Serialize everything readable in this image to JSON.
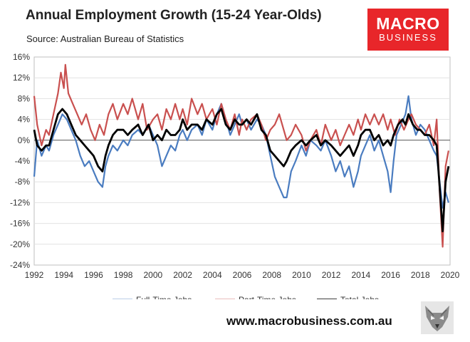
{
  "title": "Annual Employment Growth (15-24 Year-Olds)",
  "subtitle": "Source: Australian Bureau of Statistics",
  "logo": {
    "top": "MACRO",
    "bottom": "BUSINESS",
    "color": "#e8262a"
  },
  "website": "www.macrobusiness.com.au",
  "chart_data": {
    "type": "line",
    "ylim": [
      -24,
      16
    ],
    "xlim": [
      1992,
      2020
    ],
    "yticks": [
      -24,
      -20,
      -16,
      -12,
      -8,
      -4,
      0,
      4,
      8,
      12,
      16
    ],
    "ytick_labels": [
      "-24%",
      "-20%",
      "-16%",
      "-12%",
      "-8%",
      "-4%",
      "0%",
      "4%",
      "8%",
      "12%",
      "16%"
    ],
    "xticks": [
      1992,
      1994,
      1996,
      1998,
      2000,
      2002,
      2004,
      2006,
      2008,
      2010,
      2012,
      2014,
      2016,
      2018,
      2020
    ],
    "xtick_labels": [
      "1992",
      "1994",
      "1996",
      "1998",
      "2000",
      "2002",
      "2004",
      "2006",
      "2008",
      "2010",
      "2012",
      "2014",
      "2016",
      "2018",
      "2020"
    ],
    "grid": "horizontal",
    "legend_position": "bottom",
    "series": [
      {
        "name": "Full-Time Jobs",
        "color": "#4a7cc0",
        "width": 2.2,
        "points": [
          [
            1992.0,
            -7
          ],
          [
            1992.2,
            0
          ],
          [
            1992.5,
            -3
          ],
          [
            1992.8,
            -1
          ],
          [
            1993.0,
            -2
          ],
          [
            1993.3,
            1
          ],
          [
            1993.6,
            3
          ],
          [
            1993.9,
            5
          ],
          [
            1994.2,
            4
          ],
          [
            1994.5,
            2
          ],
          [
            1994.8,
            0
          ],
          [
            1995.1,
            -3
          ],
          [
            1995.4,
            -5
          ],
          [
            1995.7,
            -4
          ],
          [
            1996.0,
            -6
          ],
          [
            1996.3,
            -8
          ],
          [
            1996.6,
            -9
          ],
          [
            1996.8,
            -5
          ],
          [
            1997.0,
            -3
          ],
          [
            1997.3,
            -1
          ],
          [
            1997.6,
            -2
          ],
          [
            1998.0,
            0
          ],
          [
            1998.3,
            -1
          ],
          [
            1998.6,
            1
          ],
          [
            1999.0,
            2
          ],
          [
            1999.3,
            1
          ],
          [
            1999.7,
            3
          ],
          [
            2000.0,
            1
          ],
          [
            2000.3,
            -1
          ],
          [
            2000.6,
            -5
          ],
          [
            2000.9,
            -3
          ],
          [
            2001.2,
            -1
          ],
          [
            2001.5,
            -2
          ],
          [
            2001.8,
            1
          ],
          [
            2002.0,
            2
          ],
          [
            2002.3,
            0
          ],
          [
            2002.6,
            2
          ],
          [
            2003.0,
            3
          ],
          [
            2003.3,
            1
          ],
          [
            2003.6,
            4
          ],
          [
            2004.0,
            2
          ],
          [
            2004.3,
            5
          ],
          [
            2004.6,
            7
          ],
          [
            2004.9,
            4
          ],
          [
            2005.2,
            1
          ],
          [
            2005.5,
            3
          ],
          [
            2005.8,
            5
          ],
          [
            2006.0,
            3
          ],
          [
            2006.3,
            4
          ],
          [
            2006.6,
            2
          ],
          [
            2007.0,
            4
          ],
          [
            2007.3,
            3
          ],
          [
            2007.6,
            1
          ],
          [
            2007.9,
            -3
          ],
          [
            2008.2,
            -7
          ],
          [
            2008.5,
            -9
          ],
          [
            2008.8,
            -11
          ],
          [
            2009.0,
            -11
          ],
          [
            2009.3,
            -6
          ],
          [
            2009.6,
            -4
          ],
          [
            2010.0,
            -1
          ],
          [
            2010.3,
            -3
          ],
          [
            2010.6,
            0
          ],
          [
            2011.0,
            -1
          ],
          [
            2011.3,
            -2
          ],
          [
            2011.6,
            0
          ],
          [
            2012.0,
            -3
          ],
          [
            2012.3,
            -6
          ],
          [
            2012.6,
            -4
          ],
          [
            2012.9,
            -7
          ],
          [
            2013.2,
            -5
          ],
          [
            2013.5,
            -9
          ],
          [
            2013.8,
            -6
          ],
          [
            2014.0,
            -3
          ],
          [
            2014.3,
            -1
          ],
          [
            2014.6,
            1
          ],
          [
            2014.9,
            -2
          ],
          [
            2015.2,
            0
          ],
          [
            2015.5,
            -3
          ],
          [
            2015.8,
            -6
          ],
          [
            2016.0,
            -10
          ],
          [
            2016.2,
            -4
          ],
          [
            2016.4,
            1
          ],
          [
            2016.7,
            3
          ],
          [
            2017.0,
            5
          ],
          [
            2017.2,
            8.5
          ],
          [
            2017.4,
            4
          ],
          [
            2017.7,
            1
          ],
          [
            2018.0,
            3
          ],
          [
            2018.3,
            2
          ],
          [
            2018.6,
            0
          ],
          [
            2018.9,
            -2
          ],
          [
            2019.1,
            -3
          ],
          [
            2019.3,
            -8
          ],
          [
            2019.5,
            -13
          ],
          [
            2019.7,
            -10
          ],
          [
            2019.9,
            -12
          ]
        ]
      },
      {
        "name": "Part-Time Jobs",
        "color": "#c9504f",
        "width": 2.2,
        "points": [
          [
            1992.0,
            8.5
          ],
          [
            1992.2,
            3
          ],
          [
            1992.5,
            -1
          ],
          [
            1992.8,
            2
          ],
          [
            1993.0,
            1
          ],
          [
            1993.3,
            5
          ],
          [
            1993.6,
            9
          ],
          [
            1993.8,
            13
          ],
          [
            1994.0,
            10
          ],
          [
            1994.1,
            14.5
          ],
          [
            1994.3,
            9
          ],
          [
            1994.6,
            7
          ],
          [
            1994.9,
            5
          ],
          [
            1995.2,
            3
          ],
          [
            1995.5,
            5
          ],
          [
            1995.8,
            2
          ],
          [
            1996.1,
            0
          ],
          [
            1996.4,
            3
          ],
          [
            1996.7,
            1
          ],
          [
            1997.0,
            5
          ],
          [
            1997.3,
            7
          ],
          [
            1997.6,
            4
          ],
          [
            1998.0,
            7
          ],
          [
            1998.3,
            5
          ],
          [
            1998.6,
            8
          ],
          [
            1999.0,
            4
          ],
          [
            1999.3,
            7
          ],
          [
            1999.6,
            2
          ],
          [
            2000.0,
            4
          ],
          [
            2000.3,
            5
          ],
          [
            2000.6,
            2
          ],
          [
            2000.9,
            6
          ],
          [
            2001.2,
            4
          ],
          [
            2001.5,
            7
          ],
          [
            2001.8,
            4
          ],
          [
            2002.0,
            6
          ],
          [
            2002.3,
            3
          ],
          [
            2002.6,
            8
          ],
          [
            2003.0,
            5
          ],
          [
            2003.3,
            7
          ],
          [
            2003.6,
            4
          ],
          [
            2004.0,
            6
          ],
          [
            2004.3,
            3
          ],
          [
            2004.6,
            7
          ],
          [
            2004.9,
            4
          ],
          [
            2005.2,
            2
          ],
          [
            2005.5,
            5
          ],
          [
            2005.8,
            1
          ],
          [
            2006.0,
            4
          ],
          [
            2006.3,
            2
          ],
          [
            2006.6,
            4
          ],
          [
            2007.0,
            5
          ],
          [
            2007.3,
            3
          ],
          [
            2007.6,
            0
          ],
          [
            2007.9,
            2
          ],
          [
            2008.2,
            3
          ],
          [
            2008.5,
            5
          ],
          [
            2008.8,
            2
          ],
          [
            2009.0,
            0
          ],
          [
            2009.3,
            1
          ],
          [
            2009.6,
            3
          ],
          [
            2010.0,
            1
          ],
          [
            2010.3,
            -2
          ],
          [
            2010.6,
            0
          ],
          [
            2011.0,
            2
          ],
          [
            2011.3,
            -1
          ],
          [
            2011.6,
            3
          ],
          [
            2012.0,
            0
          ],
          [
            2012.3,
            2
          ],
          [
            2012.6,
            -1
          ],
          [
            2012.9,
            1
          ],
          [
            2013.2,
            3
          ],
          [
            2013.5,
            1
          ],
          [
            2013.8,
            4
          ],
          [
            2014.0,
            2
          ],
          [
            2014.3,
            5
          ],
          [
            2014.6,
            3
          ],
          [
            2014.9,
            5
          ],
          [
            2015.2,
            3
          ],
          [
            2015.5,
            5
          ],
          [
            2015.8,
            2
          ],
          [
            2016.0,
            4
          ],
          [
            2016.3,
            1
          ],
          [
            2016.6,
            4
          ],
          [
            2016.9,
            2
          ],
          [
            2017.2,
            4
          ],
          [
            2017.4,
            5
          ],
          [
            2017.7,
            3
          ],
          [
            2018.0,
            2
          ],
          [
            2018.3,
            1
          ],
          [
            2018.6,
            3
          ],
          [
            2018.9,
            -1
          ],
          [
            2019.1,
            4
          ],
          [
            2019.3,
            -10
          ],
          [
            2019.5,
            -20.5
          ],
          [
            2019.7,
            -5
          ],
          [
            2019.9,
            -2
          ]
        ]
      },
      {
        "name": "Total Jobs",
        "color": "#000000",
        "width": 2.8,
        "points": [
          [
            1992.0,
            2
          ],
          [
            1992.2,
            -1
          ],
          [
            1992.5,
            -2
          ],
          [
            1992.8,
            -1
          ],
          [
            1993.0,
            -1
          ],
          [
            1993.3,
            2
          ],
          [
            1993.6,
            5
          ],
          [
            1993.9,
            6
          ],
          [
            1994.2,
            5
          ],
          [
            1994.5,
            3
          ],
          [
            1994.8,
            1
          ],
          [
            1995.1,
            0
          ],
          [
            1995.4,
            -1
          ],
          [
            1995.7,
            -2
          ],
          [
            1996.0,
            -3
          ],
          [
            1996.3,
            -5
          ],
          [
            1996.6,
            -6
          ],
          [
            1996.8,
            -3
          ],
          [
            1997.0,
            -1
          ],
          [
            1997.3,
            1
          ],
          [
            1997.6,
            2
          ],
          [
            1998.0,
            2
          ],
          [
            1998.3,
            1
          ],
          [
            1998.6,
            2
          ],
          [
            1999.0,
            3
          ],
          [
            1999.3,
            1
          ],
          [
            1999.7,
            3
          ],
          [
            2000.0,
            0
          ],
          [
            2000.3,
            1
          ],
          [
            2000.6,
            0
          ],
          [
            2000.9,
            2
          ],
          [
            2001.2,
            1
          ],
          [
            2001.5,
            1
          ],
          [
            2001.8,
            2
          ],
          [
            2002.0,
            4
          ],
          [
            2002.3,
            2
          ],
          [
            2002.6,
            3
          ],
          [
            2003.0,
            3
          ],
          [
            2003.3,
            2
          ],
          [
            2003.6,
            4
          ],
          [
            2004.0,
            3
          ],
          [
            2004.3,
            5
          ],
          [
            2004.6,
            6
          ],
          [
            2004.9,
            3
          ],
          [
            2005.2,
            2
          ],
          [
            2005.5,
            4
          ],
          [
            2005.8,
            3
          ],
          [
            2006.0,
            3
          ],
          [
            2006.3,
            4
          ],
          [
            2006.6,
            3
          ],
          [
            2007.0,
            5
          ],
          [
            2007.3,
            2
          ],
          [
            2007.6,
            1
          ],
          [
            2007.9,
            -2
          ],
          [
            2008.2,
            -3
          ],
          [
            2008.5,
            -4
          ],
          [
            2008.8,
            -5
          ],
          [
            2009.0,
            -4
          ],
          [
            2009.3,
            -2
          ],
          [
            2009.6,
            -1
          ],
          [
            2010.0,
            0
          ],
          [
            2010.3,
            -1
          ],
          [
            2010.6,
            0
          ],
          [
            2011.0,
            1
          ],
          [
            2011.3,
            -1
          ],
          [
            2011.6,
            0
          ],
          [
            2012.0,
            -1
          ],
          [
            2012.3,
            -2
          ],
          [
            2012.6,
            -3
          ],
          [
            2012.9,
            -2
          ],
          [
            2013.2,
            -1
          ],
          [
            2013.5,
            -3
          ],
          [
            2013.8,
            -1
          ],
          [
            2014.0,
            1
          ],
          [
            2014.3,
            2
          ],
          [
            2014.6,
            2
          ],
          [
            2014.9,
            0
          ],
          [
            2015.2,
            1
          ],
          [
            2015.5,
            -1
          ],
          [
            2015.8,
            0
          ],
          [
            2016.0,
            -1
          ],
          [
            2016.2,
            1
          ],
          [
            2016.5,
            3
          ],
          [
            2016.8,
            4
          ],
          [
            2017.0,
            3
          ],
          [
            2017.2,
            5
          ],
          [
            2017.5,
            3
          ],
          [
            2017.8,
            2
          ],
          [
            2018.0,
            2
          ],
          [
            2018.3,
            1
          ],
          [
            2018.6,
            1
          ],
          [
            2018.9,
            0
          ],
          [
            2019.1,
            -1
          ],
          [
            2019.3,
            -9
          ],
          [
            2019.5,
            -17.5
          ],
          [
            2019.7,
            -8
          ],
          [
            2019.9,
            -5
          ]
        ]
      }
    ]
  }
}
